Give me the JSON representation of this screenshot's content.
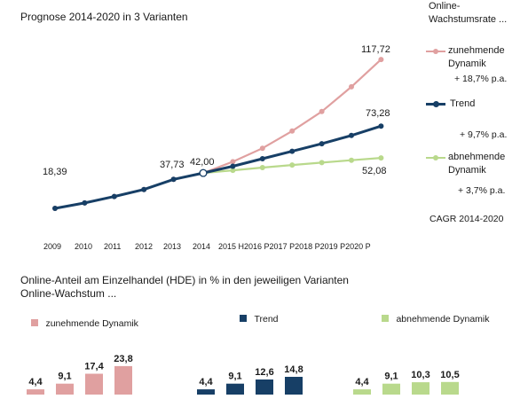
{
  "top_title": "Prognose 2014-2020 in 3 Varianten",
  "legend_heading": "Online-\nWachstumsrate ...",
  "cagr_label": "CAGR 2014-2020",
  "legend": [
    {
      "label": "zunehmende\nDynamik",
      "rate": "+ 18,7% p.a.",
      "color": "#e0a0a0"
    },
    {
      "label": "Trend",
      "rate": "+ 9,7% p.a.",
      "color": "#173f66"
    },
    {
      "label": "abnehmende\nDynamik",
      "rate": "+ 3,7% p.a.",
      "color": "#b9d98c"
    }
  ],
  "bottom_title_line1": "Online-Anteil am Einzelhandel (HDE) in % in den jeweiligen Varianten",
  "bottom_title_line2": "Online-Wachstum ...",
  "chart_data": [
    {
      "type": "line",
      "title": "Prognose 2014-2020 in 3 Varianten",
      "x": [
        "2009",
        "2010",
        "2011",
        "2012",
        "2013",
        "2014",
        "2015 H",
        "2016 P",
        "2017 P",
        "2018 P",
        "2019 P",
        "2020 P"
      ],
      "x_tick_labels": [
        "2009",
        "2010",
        "2011",
        "2012",
        "2013",
        "2014",
        "2015 H2016 P2017 P2018 P2019 P2020 P"
      ],
      "ylim": [
        10,
        125
      ],
      "grid": false,
      "legend_position": "right",
      "series": [
        {
          "name": "zunehmende Dynamik",
          "color": "#e0a0a0",
          "values": [
            18.39,
            22.0,
            26.3,
            31.0,
            37.73,
            42.0,
            49.5,
            58.5,
            70.0,
            83.0,
            99.5,
            117.72
          ]
        },
        {
          "name": "Trend",
          "color": "#173f66",
          "values": [
            18.39,
            22.0,
            26.3,
            31.0,
            37.73,
            42.0,
            46.5,
            51.5,
            56.5,
            61.5,
            67.0,
            73.28
          ]
        },
        {
          "name": "abnehmende Dynamik",
          "color": "#b9d98c",
          "values": [
            null,
            null,
            null,
            null,
            null,
            42.0,
            43.8,
            45.6,
            47.3,
            48.9,
            50.5,
            52.08
          ]
        }
      ],
      "point_labels": [
        {
          "series": 0,
          "index": 0,
          "text": "18,39"
        },
        {
          "series": 0,
          "index": 4,
          "text": "37,73"
        },
        {
          "series": 0,
          "index": 5,
          "text": "42,00"
        },
        {
          "series": 0,
          "index": 11,
          "text": "117,72"
        },
        {
          "series": 1,
          "index": 11,
          "text": "73,28"
        },
        {
          "series": 2,
          "index": 11,
          "text": "52,08"
        }
      ]
    },
    {
      "type": "bar",
      "title": "",
      "series_name": "zunehmende Dynamik",
      "color": "#e0a0a0",
      "values": [
        4.4,
        9.1,
        17.4,
        23.8
      ],
      "labels": [
        "4,4",
        "9,1",
        "17,4",
        "23,8"
      ]
    },
    {
      "type": "bar",
      "title": "",
      "series_name": "Trend",
      "color": "#173f66",
      "values": [
        4.4,
        9.1,
        12.6,
        14.8
      ],
      "labels": [
        "4,4",
        "9,1",
        "12,6",
        "14,8"
      ]
    },
    {
      "type": "bar",
      "title": "",
      "series_name": "abnehmende Dynamik",
      "color": "#b9d98c",
      "values": [
        4.4,
        9.1,
        10.3,
        10.5
      ],
      "labels": [
        "4,4",
        "9,1",
        "10,3",
        "10,5"
      ]
    }
  ]
}
